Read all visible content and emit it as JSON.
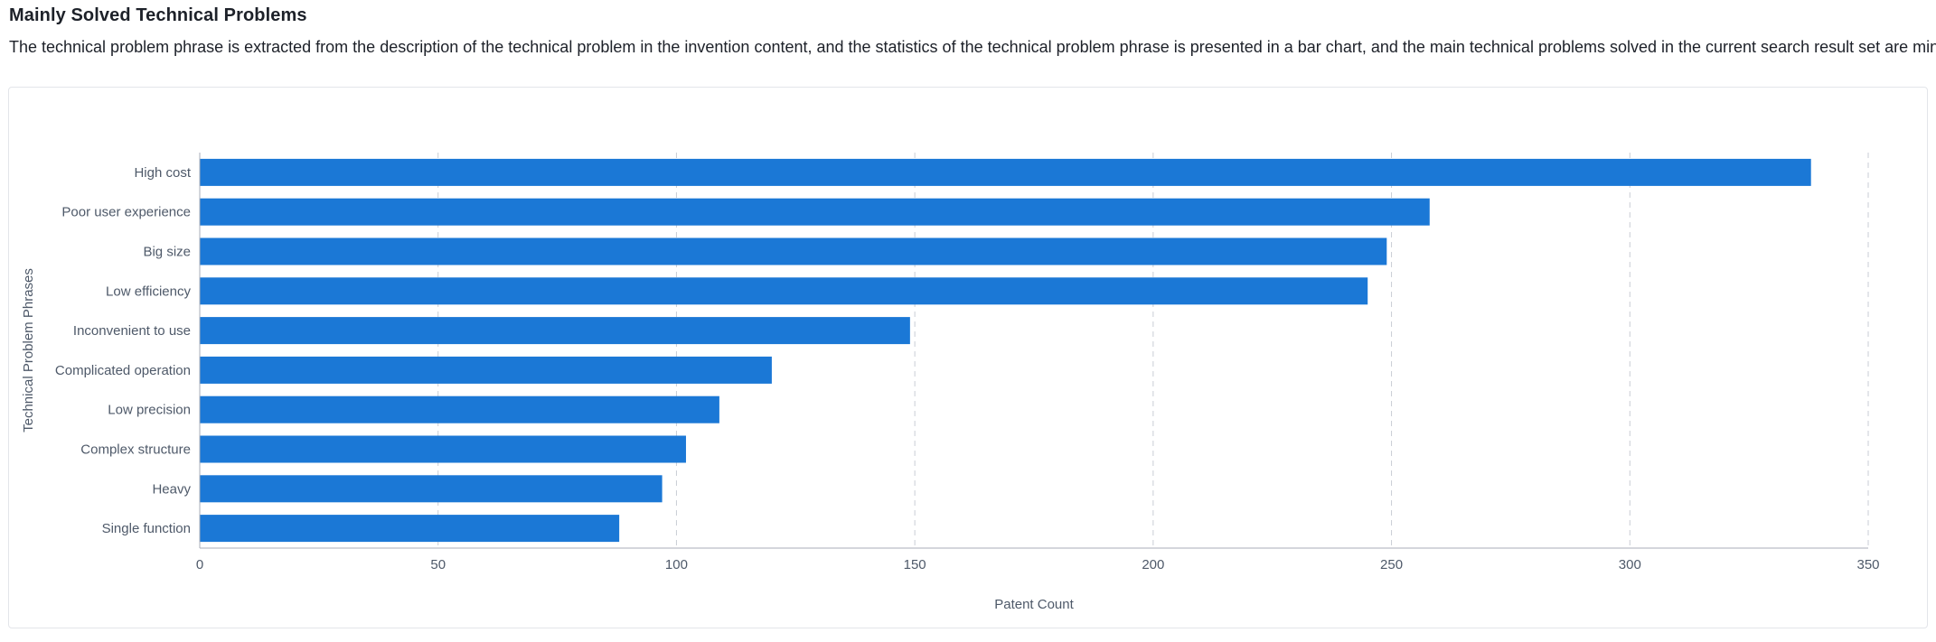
{
  "header": {
    "title": "Mainly Solved Technical Problems",
    "description": "The technical problem phrase is extracted from the description of the technical problem in the invention content, and the statistics of the technical problem phrase is presented in a bar chart, and the main technical problems solved in the current search result set are mined."
  },
  "colors": {
    "bar": "#1b78d6",
    "grid": "#c9cdd4",
    "axis": "#a9aeb8"
  },
  "chart_data": {
    "type": "bar",
    "orientation": "horizontal",
    "categories": [
      "High cost",
      "Poor user experience",
      "Big size",
      "Low efficiency",
      "Inconvenient to use",
      "Complicated operation",
      "Low precision",
      "Complex structure",
      "Heavy",
      "Single function"
    ],
    "values": [
      338,
      258,
      249,
      245,
      149,
      120,
      109,
      102,
      97,
      88
    ],
    "xlabel": "Patent Count",
    "ylabel": "Technical Problem Phrases",
    "xlim": [
      0,
      350
    ],
    "xticks": [
      "0",
      "50",
      "100",
      "150",
      "200",
      "250",
      "300",
      "350"
    ],
    "grid": "vertical dashed",
    "legend": "none"
  }
}
